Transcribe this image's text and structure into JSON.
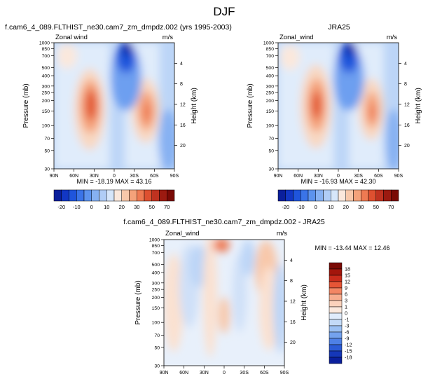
{
  "page_title": "DJF",
  "chart_data": [
    {
      "type": "heatmap",
      "title": "f.cam6_4_089.FLTHIST_ne30.cam7_zm_dmpdz.002 (yrs 1995-2003)",
      "left_label": "Zonal wind",
      "right_label": "m/s",
      "ylabel": "Pressure (mb)",
      "ylabel_right": "Height (km)",
      "x_ticks": [
        "90N",
        "60N",
        "30N",
        "0",
        "30S",
        "60S",
        "90S"
      ],
      "p_ticks": [
        "30",
        "50",
        "70",
        "100",
        "150",
        "200",
        "250",
        "300",
        "400",
        "500",
        "700",
        "850",
        "1000"
      ],
      "height_ticks": [
        "20",
        "16",
        "12",
        "8",
        "4"
      ],
      "xlim": [
        90,
        -90
      ],
      "ylim_mb": [
        1000,
        30
      ],
      "min_max": "MIN = -18.19  MAX = 43.16",
      "min": -18.19,
      "max": 43.16,
      "peaks": [
        {
          "lat": 28,
          "p": 220,
          "value": 43.16
        },
        {
          "lat": -45,
          "p": 200,
          "value": 38
        },
        {
          "lat": -2,
          "p": 32,
          "value": -18.19
        }
      ]
    },
    {
      "type": "heatmap",
      "title": "JRA25",
      "left_label": "Zonal_wind",
      "right_label": "m/s",
      "ylabel": "Pressure (mb)",
      "ylabel_right": "Height (km)",
      "x_ticks": [
        "90N",
        "60N",
        "30N",
        "0",
        "30S",
        "60S",
        "90S"
      ],
      "p_ticks": [
        "30",
        "50",
        "70",
        "100",
        "150",
        "200",
        "250",
        "300",
        "400",
        "500",
        "700",
        "850",
        "1000"
      ],
      "height_ticks": [
        "20",
        "16",
        "12",
        "8",
        "4"
      ],
      "xlim": [
        90,
        -90
      ],
      "ylim_mb": [
        1000,
        30
      ],
      "min_max": "MIN = -16.93  MAX = 42.30",
      "min": -16.93,
      "max": 42.3,
      "peaks": [
        {
          "lat": 30,
          "p": 220,
          "value": 42.3
        },
        {
          "lat": -45,
          "p": 200,
          "value": 33
        },
        {
          "lat": 0,
          "p": 35,
          "value": -16.93
        }
      ]
    },
    {
      "type": "heatmap",
      "title": "f.cam6_4_089.FLTHIST_ne30.cam7_zm_dmpdz.002 - JRA25",
      "left_label": "Zonal_wind",
      "right_label": "m/s",
      "ylabel": "Pressure (mb)",
      "ylabel_right": "Height (km)",
      "x_ticks": [
        "90N",
        "60N",
        "30N",
        "0",
        "30S",
        "60S",
        "90S"
      ],
      "p_ticks": [
        "30",
        "50",
        "70",
        "100",
        "150",
        "200",
        "250",
        "300",
        "400",
        "500",
        "700",
        "850",
        "1000"
      ],
      "height_ticks": [
        "20",
        "16",
        "12",
        "8",
        "4"
      ],
      "xlim": [
        90,
        -90
      ],
      "ylim_mb": [
        1000,
        30
      ],
      "min_max": "MIN = -13.44  MAX = 12.46",
      "min": -13.44,
      "max": 12.46
    }
  ],
  "colorbars": {
    "main": {
      "labels": [
        "-20",
        "-10",
        "0",
        "10",
        "20",
        "30",
        "50",
        "70"
      ],
      "colors": [
        "#0a1f9c",
        "#1237c4",
        "#1f55dc",
        "#3a74e8",
        "#5c93ee",
        "#86b1f2",
        "#b0cdf6",
        "#d6e6fa",
        "#fbe8dc",
        "#f8c8aa",
        "#f4a27a",
        "#ee7a52",
        "#de5030",
        "#bf3220",
        "#9c1a10",
        "#7a0a05"
      ]
    },
    "diff": {
      "labels": [
        "18",
        "15",
        "12",
        "9",
        "6",
        "3",
        "1",
        "0",
        "-1",
        "-3",
        "-6",
        "-9",
        "-12",
        "-15",
        "-18"
      ],
      "colors": [
        "#7a0a05",
        "#a3160c",
        "#c92c1c",
        "#e65536",
        "#f38664",
        "#f7ad8f",
        "#fbd2bc",
        "#fbe9dd",
        "#e0ecfb",
        "#c3daf7",
        "#9bc0f3",
        "#74a2ee",
        "#4e80e6",
        "#2c5bd6",
        "#1537b8",
        "#0a1f9c"
      ]
    }
  },
  "colors": {
    "positive_max": "#e2552d",
    "negative_max": "#0a2aa8",
    "background": "#ffffff"
  }
}
